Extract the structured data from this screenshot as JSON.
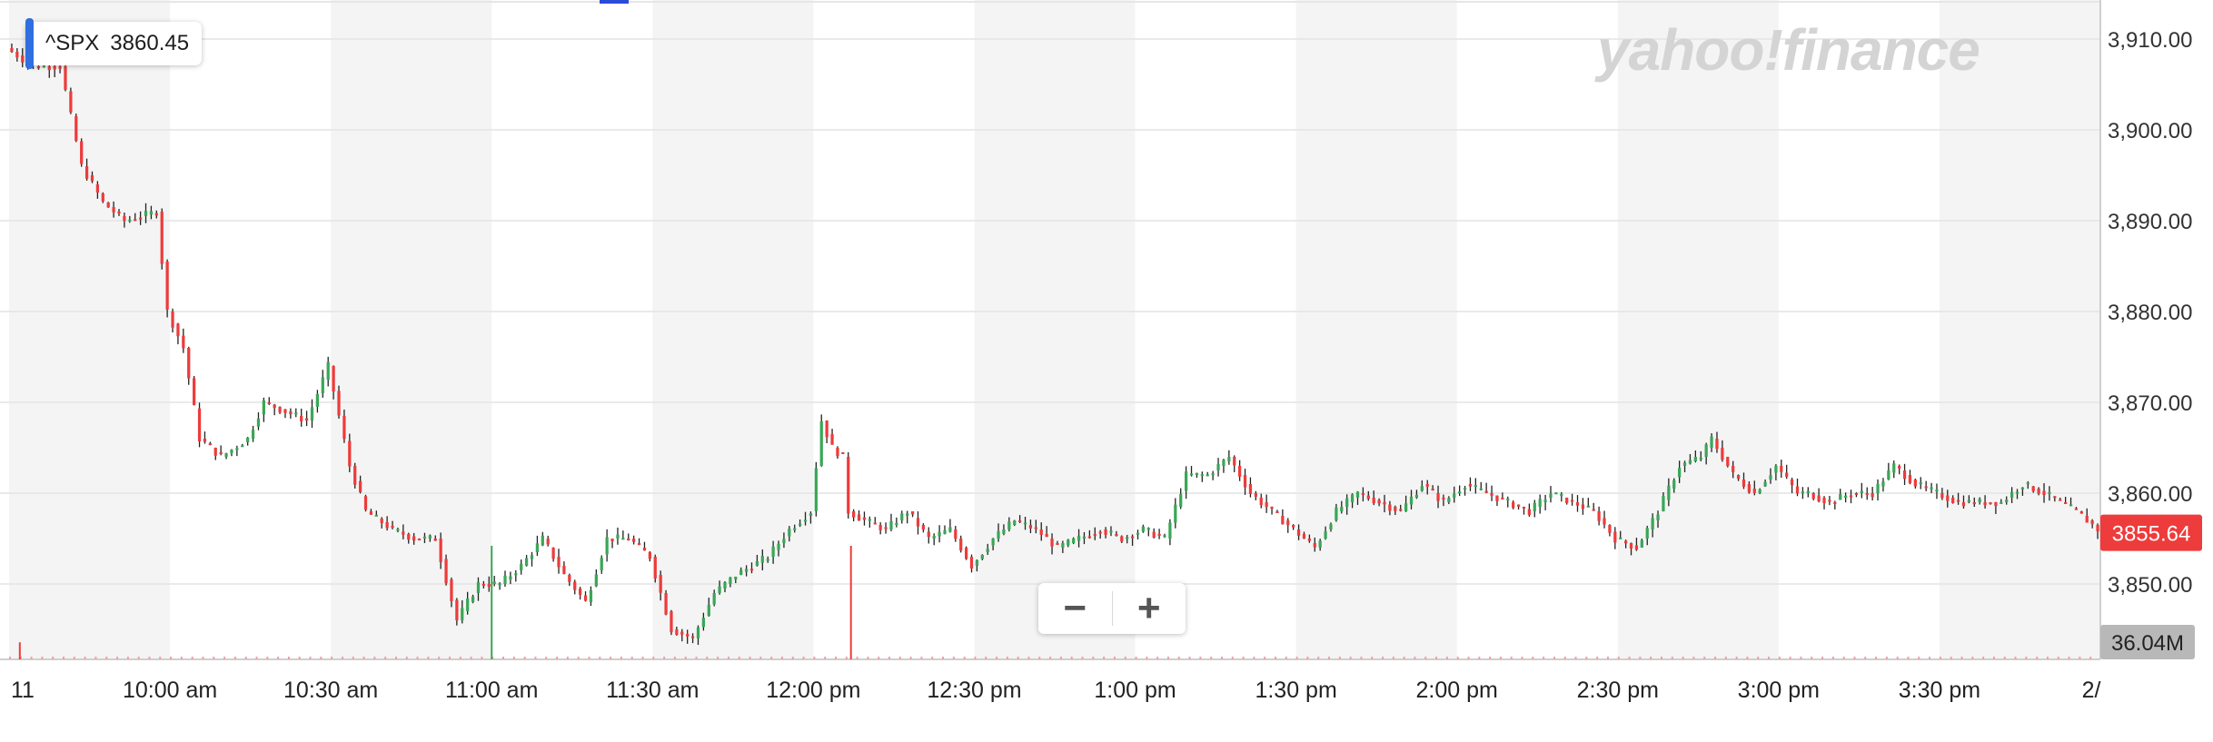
{
  "header": {
    "symbol": "^SPX",
    "price": "3860.45",
    "watermark": "yahoo!finance"
  },
  "zoom": {
    "minus_label": "−",
    "plus_label": "+"
  },
  "colors": {
    "up": "#3aa757",
    "down": "#ee3b3b",
    "neutral": "#222222",
    "price_tag": "#ee3b3b",
    "volume_tag": "#b8b8b8",
    "band": "#f4f4f4",
    "accent": "#2f6fe0"
  },
  "chart_data": {
    "type": "candlestick",
    "x_tick_labels": [
      "11",
      "10:00 am",
      "10:30 am",
      "11:00 am",
      "11:30 am",
      "12:00 pm",
      "12:30 pm",
      "1:00 pm",
      "1:30 pm",
      "2:00 pm",
      "2:30 pm",
      "3:00 pm",
      "3:30 pm",
      "2/"
    ],
    "y_tick_labels": [
      "3,910.00",
      "3,900.00",
      "3,890.00",
      "3,880.00",
      "3,870.00",
      "3,860.00",
      "3,850.00"
    ],
    "y_ticks": [
      3910,
      3900,
      3890,
      3880,
      3870,
      3860,
      3850
    ],
    "ylim": [
      3842,
      3915
    ],
    "x_range_minutes": [
      "9:30",
      "16:00"
    ],
    "last_price_label": "3855.64",
    "volume_label": "36.04M",
    "close_path": [
      [
        0,
        3909
      ],
      [
        5,
        3907
      ],
      [
        10,
        3907
      ],
      [
        14,
        3896
      ],
      [
        18,
        3892
      ],
      [
        22,
        3890
      ],
      [
        28,
        3891
      ],
      [
        30,
        3880
      ],
      [
        33,
        3876
      ],
      [
        36,
        3866
      ],
      [
        40,
        3864
      ],
      [
        45,
        3866
      ],
      [
        48,
        3870
      ],
      [
        52,
        3869
      ],
      [
        56,
        3868
      ],
      [
        60,
        3874
      ],
      [
        64,
        3863
      ],
      [
        67,
        3858
      ],
      [
        72,
        3856
      ],
      [
        76,
        3855
      ],
      [
        80,
        3855
      ],
      [
        84,
        3846
      ],
      [
        88,
        3850
      ],
      [
        92,
        3850
      ],
      [
        96,
        3852
      ],
      [
        100,
        3855
      ],
      [
        104,
        3851
      ],
      [
        108,
        3848
      ],
      [
        112,
        3855
      ],
      [
        116,
        3855
      ],
      [
        120,
        3853
      ],
      [
        124,
        3845
      ],
      [
        128,
        3844
      ],
      [
        132,
        3849
      ],
      [
        136,
        3851
      ],
      [
        142,
        3853
      ],
      [
        146,
        3856
      ],
      [
        150,
        3858
      ],
      [
        152,
        3868
      ],
      [
        154,
        3865
      ],
      [
        156,
        3864
      ],
      [
        157,
        3858
      ],
      [
        160,
        3857
      ],
      [
        164,
        3856
      ],
      [
        168,
        3858
      ],
      [
        172,
        3855
      ],
      [
        176,
        3856
      ],
      [
        180,
        3852
      ],
      [
        184,
        3855
      ],
      [
        188,
        3857
      ],
      [
        192,
        3856
      ],
      [
        196,
        3854
      ],
      [
        200,
        3855
      ],
      [
        204,
        3856
      ],
      [
        208,
        3855
      ],
      [
        212,
        3856
      ],
      [
        216,
        3855
      ],
      [
        220,
        3862
      ],
      [
        224,
        3862
      ],
      [
        228,
        3864
      ],
      [
        232,
        3860
      ],
      [
        236,
        3858
      ],
      [
        240,
        3856
      ],
      [
        244,
        3854
      ],
      [
        248,
        3858
      ],
      [
        252,
        3860
      ],
      [
        256,
        3859
      ],
      [
        260,
        3858
      ],
      [
        264,
        3861
      ],
      [
        268,
        3859
      ],
      [
        272,
        3861
      ],
      [
        276,
        3860
      ],
      [
        280,
        3859
      ],
      [
        284,
        3858
      ],
      [
        288,
        3860
      ],
      [
        292,
        3859
      ],
      [
        296,
        3858
      ],
      [
        300,
        3855
      ],
      [
        304,
        3854
      ],
      [
        308,
        3858
      ],
      [
        312,
        3863
      ],
      [
        316,
        3864
      ],
      [
        318,
        3866
      ],
      [
        322,
        3862
      ],
      [
        326,
        3860
      ],
      [
        330,
        3863
      ],
      [
        334,
        3860
      ],
      [
        336,
        3860
      ],
      [
        340,
        3859
      ],
      [
        344,
        3860
      ],
      [
        348,
        3860
      ],
      [
        352,
        3863
      ],
      [
        356,
        3861
      ],
      [
        360,
        3860
      ],
      [
        364,
        3859
      ],
      [
        368,
        3859
      ],
      [
        372,
        3859
      ],
      [
        376,
        3861
      ],
      [
        380,
        3860
      ],
      [
        386,
        3858
      ],
      [
        390,
        3856
      ]
    ],
    "volume_spikes": [
      {
        "t": 2,
        "value": 0.15
      },
      {
        "t": 90,
        "value": 1.0
      },
      {
        "t": 157,
        "value": 1.0
      }
    ]
  }
}
